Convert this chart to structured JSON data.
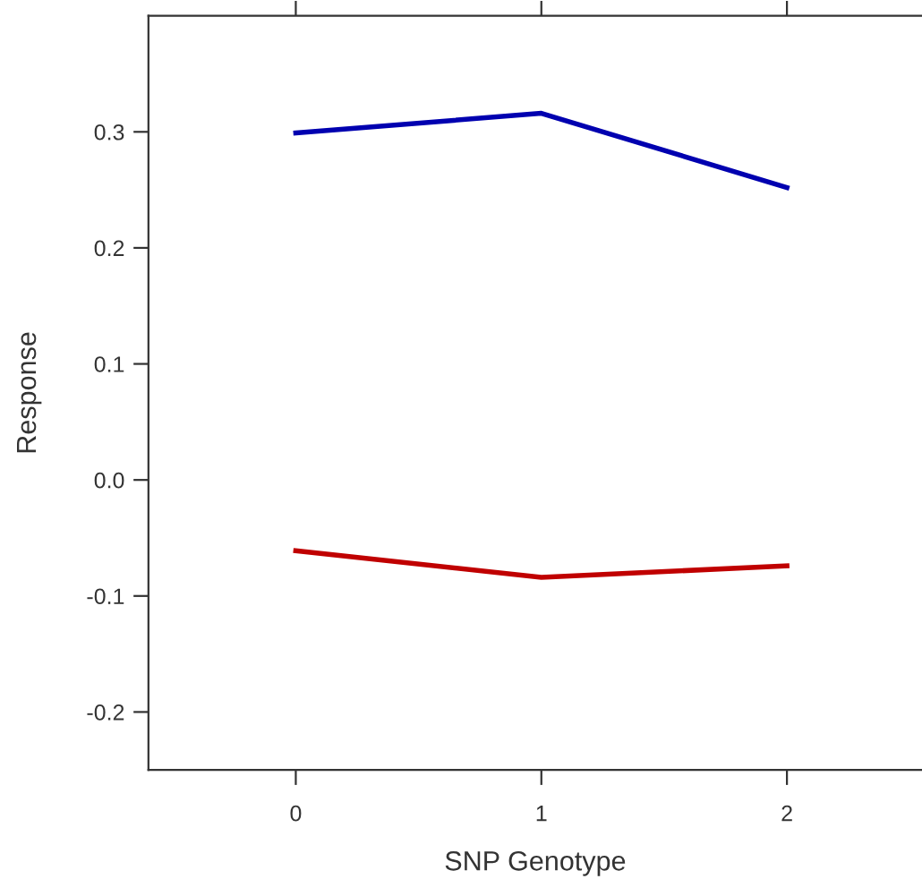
{
  "chart_data": {
    "type": "line",
    "xlabel": "SNP Genotype",
    "ylabel": "Response",
    "x": [
      0,
      1,
      2
    ],
    "series": [
      {
        "color": "#0000b0",
        "values": [
          0.299,
          0.316,
          0.252
        ]
      },
      {
        "color": "#c00000",
        "values": [
          -0.061,
          -0.084,
          -0.074
        ]
      }
    ],
    "xlim": [
      -0.6,
      2.55
    ],
    "xticks": [
      0,
      1,
      2
    ],
    "ylim": [
      -0.25,
      0.4
    ],
    "yticks": [
      {
        "value": -0.2,
        "label": "-0.2"
      },
      {
        "value": -0.1,
        "label": "-0.1"
      },
      {
        "value": 0,
        "label": "0.0"
      },
      {
        "value": 0.1,
        "label": "0.1"
      },
      {
        "value": 0.2,
        "label": "0.2"
      },
      {
        "value": 0.3,
        "label": "0.3"
      }
    ],
    "grid": false,
    "legend": false,
    "marker": "none",
    "line_style": "solid"
  }
}
